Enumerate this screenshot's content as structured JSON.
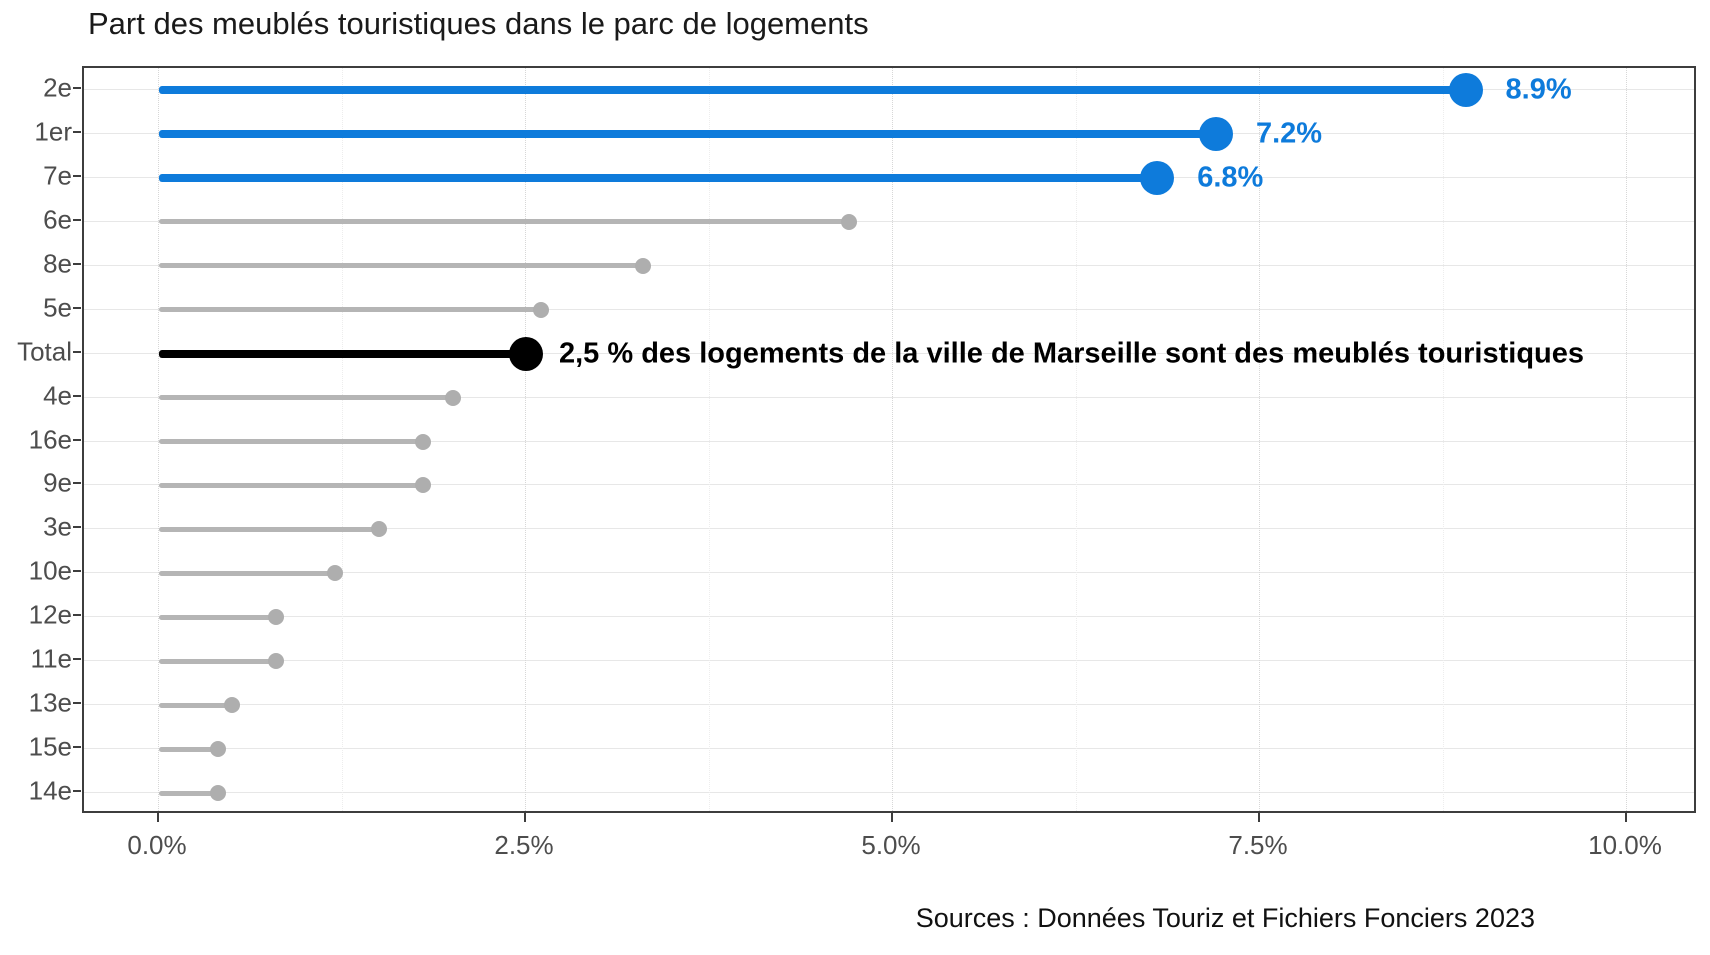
{
  "title": "Part des meublés touristiques dans le parc de logements",
  "source": "Sources : Données Touriz et Fichiers Fonciers 2023",
  "chart_data": {
    "type": "bar",
    "subtype": "lollipop",
    "orientation": "horizontal",
    "title": "Part des meublés touristiques dans le parc de logements",
    "xlabel": "",
    "ylabel": "",
    "xlim": [
      -0.51,
      10.48
    ],
    "x_ticks": [
      0,
      2.5,
      5,
      7.5,
      10
    ],
    "x_tick_labels": [
      "0.0%",
      "2.5%",
      "5.0%",
      "7.5%",
      "10.0%"
    ],
    "x_minor_ticks": [
      1.25,
      3.75,
      6.25,
      8.75
    ],
    "grid": "on",
    "legend": "none",
    "categories": [
      "2e",
      "1er",
      "7e",
      "6e",
      "8e",
      "5e",
      "Total",
      "4e",
      "16e",
      "9e",
      "3e",
      "10e",
      "12e",
      "11e",
      "13e",
      "15e",
      "14e"
    ],
    "values": [
      8.9,
      7.2,
      6.8,
      4.7,
      3.3,
      2.6,
      2.5,
      2.0,
      1.8,
      1.8,
      1.5,
      1.2,
      0.8,
      0.8,
      0.5,
      0.4,
      0.4
    ],
    "rows": [
      {
        "label": "2e",
        "value": 8.9,
        "group": "highlight_blue",
        "value_label": "8.9%"
      },
      {
        "label": "1er",
        "value": 7.2,
        "group": "highlight_blue",
        "value_label": "7.2%"
      },
      {
        "label": "7e",
        "value": 6.8,
        "group": "highlight_blue",
        "value_label": "6.8%"
      },
      {
        "label": "6e",
        "value": 4.7,
        "group": "default",
        "value_label": ""
      },
      {
        "label": "8e",
        "value": 3.3,
        "group": "default",
        "value_label": ""
      },
      {
        "label": "5e",
        "value": 2.6,
        "group": "default",
        "value_label": ""
      },
      {
        "label": "Total",
        "value": 2.5,
        "group": "highlight_black",
        "value_label": "2,5 % des logements de la ville de Marseille sont des meublés touristiques"
      },
      {
        "label": "4e",
        "value": 2.0,
        "group": "default",
        "value_label": ""
      },
      {
        "label": "16e",
        "value": 1.8,
        "group": "default",
        "value_label": ""
      },
      {
        "label": "9e",
        "value": 1.8,
        "group": "default",
        "value_label": ""
      },
      {
        "label": "3e",
        "value": 1.5,
        "group": "default",
        "value_label": ""
      },
      {
        "label": "10e",
        "value": 1.2,
        "group": "default",
        "value_label": ""
      },
      {
        "label": "12e",
        "value": 0.8,
        "group": "default",
        "value_label": ""
      },
      {
        "label": "11e",
        "value": 0.8,
        "group": "default",
        "value_label": ""
      },
      {
        "label": "13e",
        "value": 0.5,
        "group": "default",
        "value_label": ""
      },
      {
        "label": "15e",
        "value": 0.4,
        "group": "default",
        "value_label": ""
      },
      {
        "label": "14e",
        "value": 0.4,
        "group": "default",
        "value_label": ""
      }
    ],
    "colors": {
      "highlight_blue": "#0E7BDB",
      "highlight_black": "#000000",
      "default_line": "#b5b5b5",
      "default_dot": "#aeaeae",
      "axis_text": "#4d4d4d",
      "title_text": "#1a1a1a"
    }
  }
}
